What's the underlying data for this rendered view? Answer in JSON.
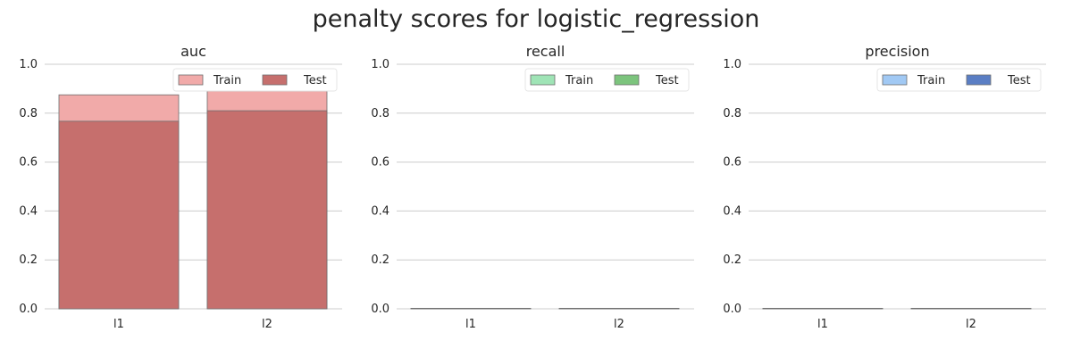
{
  "title": "penalty scores for logistic_regression",
  "chart_data": [
    {
      "type": "bar",
      "title": "auc",
      "categories": [
        "l1",
        "l2"
      ],
      "series": [
        {
          "name": "Train",
          "values": [
            0.875,
            0.89
          ]
        },
        {
          "name": "Test",
          "values": [
            0.767,
            0.81
          ]
        }
      ],
      "ylim": [
        0,
        1.0
      ],
      "yticks": [
        "0.0",
        "0.2",
        "0.4",
        "0.6",
        "0.8",
        "1.0"
      ],
      "grid": "y",
      "legend": "top-right",
      "colors": {
        "train": "#f1aaa9",
        "test": "#c66f6d"
      }
    },
    {
      "type": "bar",
      "title": "recall",
      "categories": [
        "l1",
        "l2"
      ],
      "series": [
        {
          "name": "Train",
          "values": [
            0,
            0
          ]
        },
        {
          "name": "Test",
          "values": [
            0,
            0
          ]
        }
      ],
      "ylim": [
        0,
        1.0
      ],
      "yticks": [
        "0.0",
        "0.2",
        "0.4",
        "0.6",
        "0.8",
        "1.0"
      ],
      "grid": "y",
      "legend": "top-right",
      "colors": {
        "train": "#9fe4b6",
        "test": "#7cc47d"
      }
    },
    {
      "type": "bar",
      "title": "precision",
      "categories": [
        "l1",
        "l2"
      ],
      "series": [
        {
          "name": "Train",
          "values": [
            0,
            0
          ]
        },
        {
          "name": "Test",
          "values": [
            0,
            0
          ]
        }
      ],
      "ylim": [
        0,
        1.0
      ],
      "yticks": [
        "0.0",
        "0.2",
        "0.4",
        "0.6",
        "0.8",
        "1.0"
      ],
      "grid": "y",
      "legend": "top-right",
      "colors": {
        "train": "#a1c9f4",
        "test": "#5a7ec4"
      }
    }
  ]
}
